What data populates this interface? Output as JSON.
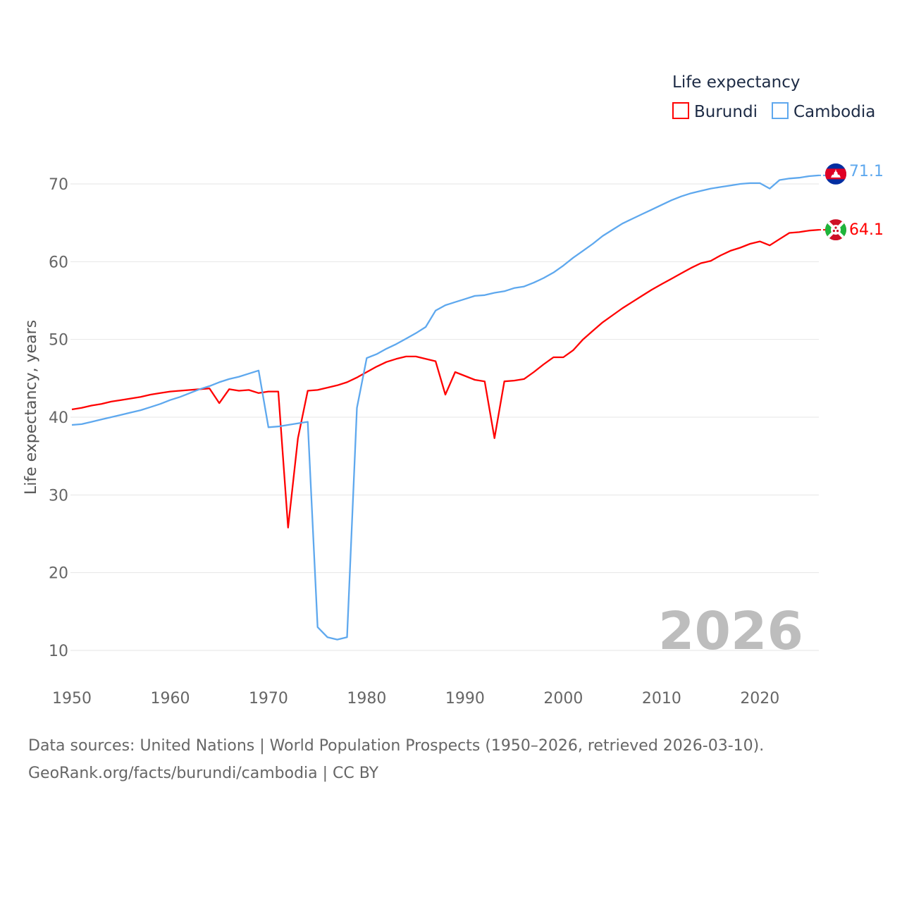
{
  "chart_data": {
    "type": "line",
    "title": "",
    "legend_title": "Life expectancy",
    "legend_placement": "top-right",
    "ylabel": "Life expectancy, years",
    "xlabel": "",
    "xlim": [
      1950,
      2026
    ],
    "ylim": [
      6,
      74
    ],
    "grid": true,
    "x_ticks": [
      "1950",
      "1960",
      "1970",
      "1980",
      "1990",
      "2000",
      "2010",
      "2020"
    ],
    "y_ticks": [
      "10",
      "20",
      "30",
      "40",
      "50",
      "60",
      "70"
    ],
    "current_year_label": "2026",
    "x": [
      1950,
      1951,
      1952,
      1953,
      1954,
      1955,
      1956,
      1957,
      1958,
      1959,
      1960,
      1961,
      1962,
      1963,
      1964,
      1965,
      1966,
      1967,
      1968,
      1969,
      1970,
      1971,
      1972,
      1973,
      1974,
      1975,
      1976,
      1977,
      1978,
      1979,
      1980,
      1981,
      1982,
      1983,
      1984,
      1985,
      1986,
      1987,
      1988,
      1989,
      1990,
      1991,
      1992,
      1993,
      1994,
      1995,
      1996,
      1997,
      1998,
      1999,
      2000,
      2001,
      2002,
      2003,
      2004,
      2005,
      2006,
      2007,
      2008,
      2009,
      2010,
      2011,
      2012,
      2013,
      2014,
      2015,
      2016,
      2017,
      2018,
      2019,
      2020,
      2021,
      2022,
      2023,
      2024,
      2025,
      2026
    ],
    "series": [
      {
        "name": "Burundi",
        "color": "#ff0000",
        "end_label": "64.1",
        "flag": "burundi-flag",
        "values": [
          41.0,
          41.2,
          41.5,
          41.7,
          42.0,
          42.2,
          42.4,
          42.6,
          42.9,
          43.1,
          43.3,
          43.4,
          43.5,
          43.6,
          43.7,
          41.8,
          43.6,
          43.4,
          43.5,
          43.1,
          43.3,
          43.3,
          25.8,
          37.3,
          43.4,
          43.5,
          43.8,
          44.1,
          44.5,
          45.1,
          45.8,
          46.5,
          47.1,
          47.5,
          47.8,
          47.8,
          47.5,
          47.2,
          42.9,
          45.8,
          45.3,
          44.8,
          44.6,
          37.3,
          44.6,
          44.7,
          44.9,
          45.8,
          46.8,
          47.7,
          47.7,
          48.6,
          50.0,
          51.1,
          52.2,
          53.1,
          54.0,
          54.8,
          55.6,
          56.4,
          57.1,
          57.8,
          58.5,
          59.2,
          59.8,
          60.1,
          60.8,
          61.4,
          61.8,
          62.3,
          62.6,
          62.1,
          62.9,
          63.7,
          63.8,
          64.0,
          64.1
        ]
      },
      {
        "name": "Cambodia",
        "color": "#5ea8ee",
        "end_label": "71.1",
        "flag": "cambodia-flag",
        "values": [
          39.0,
          39.1,
          39.4,
          39.7,
          40.0,
          40.3,
          40.6,
          40.9,
          41.3,
          41.7,
          42.2,
          42.6,
          43.1,
          43.6,
          44.0,
          44.5,
          44.9,
          45.2,
          45.6,
          46.0,
          38.7,
          38.8,
          39.0,
          39.2,
          39.4,
          13.0,
          11.7,
          11.4,
          11.7,
          41.2,
          47.6,
          48.1,
          48.8,
          49.4,
          50.1,
          50.8,
          51.6,
          53.7,
          54.4,
          54.8,
          55.2,
          55.6,
          55.7,
          56.0,
          56.2,
          56.6,
          56.8,
          57.3,
          57.9,
          58.6,
          59.5,
          60.5,
          61.4,
          62.3,
          63.3,
          64.1,
          64.9,
          65.5,
          66.1,
          66.7,
          67.3,
          67.9,
          68.4,
          68.8,
          69.1,
          69.4,
          69.6,
          69.8,
          70.0,
          70.1,
          70.1,
          69.4,
          70.5,
          70.7,
          70.8,
          71.0,
          71.1
        ]
      }
    ]
  },
  "footer": {
    "line1": "Data sources: United Nations | World Population Prospects (1950–2026, retrieved 2026-03-10).",
    "line2": "GeoRank.org/facts/burundi/cambodia | CC BY"
  }
}
